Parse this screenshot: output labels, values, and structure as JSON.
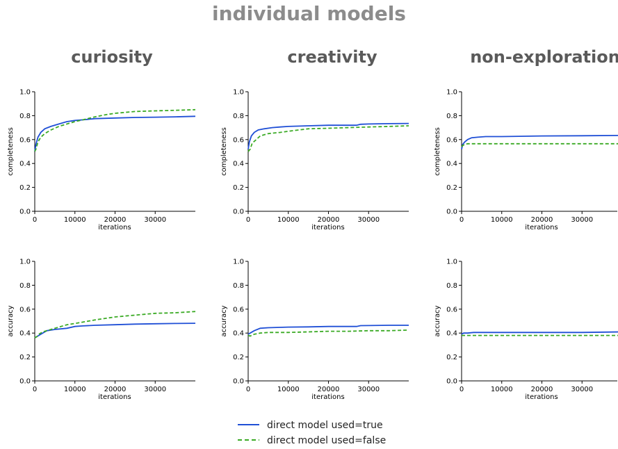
{
  "title": "individual models",
  "columns": [
    "curiosity",
    "creativity",
    "non-exploration"
  ],
  "colors": {
    "true": "#1f4fd6",
    "false": "#3aaa24"
  },
  "legend": [
    {
      "key": "true",
      "label": "direct model used=true",
      "style": "solid"
    },
    {
      "key": "false",
      "label": "direct model used=false",
      "style": "dashed"
    }
  ],
  "chart_data": [
    {
      "type": "line",
      "column": "curiosity",
      "xlabel": "iterations",
      "ylabel": "completeness",
      "xlim": [
        0,
        40000
      ],
      "ylim": [
        0,
        1.0
      ],
      "xticks": [
        "0",
        "10000",
        "20000",
        "30000"
      ],
      "yticks": [
        "0.0",
        "0.2",
        "0.4",
        "0.6",
        "0.8",
        "1.0"
      ],
      "series": [
        {
          "name": "direct model used=true",
          "key": "true",
          "x": [
            0,
            300,
            800,
            1500,
            2500,
            4000,
            6000,
            8000,
            10000,
            12000,
            15000,
            20000,
            25000,
            30000,
            35000,
            40000
          ],
          "y": [
            0.5,
            0.56,
            0.62,
            0.66,
            0.69,
            0.71,
            0.73,
            0.75,
            0.76,
            0.765,
            0.775,
            0.78,
            0.785,
            0.787,
            0.79,
            0.795
          ]
        },
        {
          "name": "direct model used=false",
          "key": "false",
          "x": [
            0,
            300,
            800,
            1500,
            2500,
            4000,
            6000,
            8000,
            10000,
            12000,
            15000,
            18000,
            20000,
            25000,
            30000,
            35000,
            40000
          ],
          "y": [
            0.5,
            0.52,
            0.58,
            0.62,
            0.65,
            0.68,
            0.71,
            0.73,
            0.75,
            0.765,
            0.79,
            0.81,
            0.82,
            0.835,
            0.84,
            0.845,
            0.85
          ]
        }
      ]
    },
    {
      "type": "line",
      "column": "creativity",
      "xlabel": "iterations",
      "ylabel": "completeness",
      "xlim": [
        0,
        40000
      ],
      "ylim": [
        0,
        1.0
      ],
      "xticks": [
        "0",
        "10000",
        "20000",
        "30000"
      ],
      "yticks": [
        "0.0",
        "0.2",
        "0.4",
        "0.6",
        "0.8",
        "1.0"
      ],
      "series": [
        {
          "name": "direct model used=true",
          "key": "true",
          "x": [
            0,
            300,
            800,
            1500,
            2500,
            4000,
            6000,
            8000,
            10000,
            15000,
            20000,
            25000,
            27000,
            28000,
            30000,
            35000,
            40000
          ],
          "y": [
            0.52,
            0.58,
            0.63,
            0.66,
            0.68,
            0.69,
            0.7,
            0.705,
            0.71,
            0.715,
            0.72,
            0.72,
            0.72,
            0.728,
            0.73,
            0.733,
            0.735
          ]
        },
        {
          "name": "direct model used=false",
          "key": "false",
          "x": [
            0,
            500,
            1000,
            2000,
            3000,
            5000,
            8000,
            10000,
            15000,
            20000,
            25000,
            30000,
            35000,
            40000
          ],
          "y": [
            0.5,
            0.52,
            0.57,
            0.6,
            0.63,
            0.65,
            0.66,
            0.67,
            0.69,
            0.695,
            0.7,
            0.705,
            0.71,
            0.715
          ]
        }
      ]
    },
    {
      "type": "line",
      "column": "non-exploration",
      "xlabel": "iterations",
      "ylabel": "completeness",
      "xlim": [
        0,
        40000
      ],
      "ylim": [
        0,
        1.0
      ],
      "xticks": [
        "0",
        "10000",
        "20000",
        "30000"
      ],
      "yticks": [
        "0.0",
        "0.2",
        "0.4",
        "0.6",
        "0.8",
        "1.0"
      ],
      "series": [
        {
          "name": "direct model used=true",
          "key": "true",
          "x": [
            0,
            300,
            800,
            1500,
            2500,
            4000,
            6000,
            10000,
            20000,
            30000,
            40000
          ],
          "y": [
            0.52,
            0.56,
            0.58,
            0.6,
            0.615,
            0.62,
            0.625,
            0.625,
            0.63,
            0.632,
            0.635
          ]
        },
        {
          "name": "direct model used=false",
          "key": "false",
          "x": [
            0,
            300,
            800,
            1500,
            2500,
            4000,
            10000,
            20000,
            30000,
            40000
          ],
          "y": [
            0.54,
            0.55,
            0.56,
            0.565,
            0.565,
            0.565,
            0.565,
            0.565,
            0.565,
            0.565
          ]
        }
      ]
    },
    {
      "type": "line",
      "column": "curiosity",
      "xlabel": "iterations",
      "ylabel": "accuracy",
      "xlim": [
        0,
        40000
      ],
      "ylim": [
        0,
        1.0
      ],
      "xticks": [
        "0",
        "10000",
        "20000",
        "30000"
      ],
      "yticks": [
        "0.0",
        "0.2",
        "0.4",
        "0.6",
        "0.8",
        "1.0"
      ],
      "series": [
        {
          "name": "direct model used=true",
          "key": "true",
          "x": [
            0,
            500,
            1000,
            2000,
            3000,
            5000,
            8000,
            10000,
            12000,
            15000,
            20000,
            25000,
            30000,
            35000,
            40000
          ],
          "y": [
            0.36,
            0.37,
            0.38,
            0.4,
            0.42,
            0.43,
            0.44,
            0.455,
            0.46,
            0.465,
            0.47,
            0.475,
            0.478,
            0.48,
            0.482
          ]
        },
        {
          "name": "direct model used=false",
          "key": "false",
          "x": [
            0,
            500,
            1000,
            2000,
            3000,
            5000,
            8000,
            10000,
            15000,
            20000,
            25000,
            30000,
            35000,
            40000
          ],
          "y": [
            0.36,
            0.37,
            0.39,
            0.41,
            0.42,
            0.44,
            0.47,
            0.48,
            0.51,
            0.535,
            0.55,
            0.565,
            0.57,
            0.58
          ]
        }
      ]
    },
    {
      "type": "line",
      "column": "creativity",
      "xlabel": "iterations",
      "ylabel": "accuracy",
      "xlim": [
        0,
        40000
      ],
      "ylim": [
        0,
        1.0
      ],
      "xticks": [
        "0",
        "10000",
        "20000",
        "30000"
      ],
      "yticks": [
        "0.0",
        "0.2",
        "0.4",
        "0.6",
        "0.8",
        "1.0"
      ],
      "series": [
        {
          "name": "direct model used=true",
          "key": "true",
          "x": [
            0,
            500,
            1500,
            3000,
            5000,
            10000,
            15000,
            20000,
            27000,
            28000,
            30000,
            35000,
            40000
          ],
          "y": [
            0.39,
            0.4,
            0.42,
            0.44,
            0.445,
            0.45,
            0.452,
            0.455,
            0.455,
            0.462,
            0.463,
            0.465,
            0.465
          ]
        },
        {
          "name": "direct model used=false",
          "key": "false",
          "x": [
            0,
            500,
            1500,
            3000,
            5000,
            10000,
            15000,
            20000,
            25000,
            30000,
            35000,
            40000
          ],
          "y": [
            0.38,
            0.375,
            0.39,
            0.4,
            0.405,
            0.405,
            0.41,
            0.415,
            0.415,
            0.42,
            0.42,
            0.425
          ]
        }
      ]
    },
    {
      "type": "line",
      "column": "non-exploration",
      "xlabel": "iterations",
      "ylabel": "accuracy",
      "xlim": [
        0,
        40000
      ],
      "ylim": [
        0,
        1.0
      ],
      "xticks": [
        "0",
        "10000",
        "20000",
        "30000"
      ],
      "yticks": [
        "0.0",
        "0.2",
        "0.4",
        "0.6",
        "0.8",
        "1.0"
      ],
      "series": [
        {
          "name": "direct model used=true",
          "key": "true",
          "x": [
            0,
            500,
            1500,
            3000,
            5000,
            10000,
            20000,
            30000,
            40000
          ],
          "y": [
            0.39,
            0.4,
            0.4,
            0.405,
            0.405,
            0.405,
            0.405,
            0.405,
            0.41
          ]
        },
        {
          "name": "direct model used=false",
          "key": "false",
          "x": [
            0,
            2000,
            10000,
            20000,
            30000,
            40000
          ],
          "y": [
            0.38,
            0.38,
            0.38,
            0.38,
            0.38,
            0.38
          ]
        }
      ]
    }
  ]
}
